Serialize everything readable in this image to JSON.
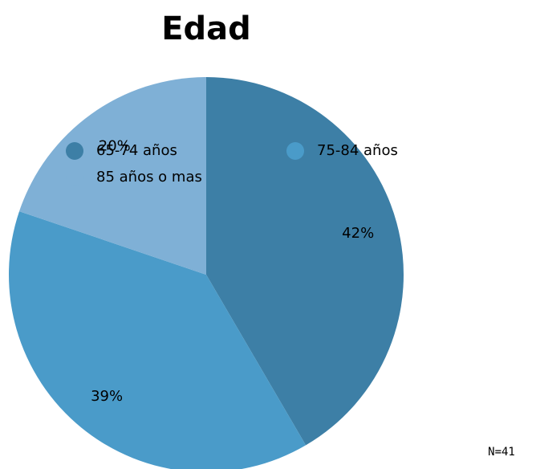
{
  "chart_data": {
    "type": "pie",
    "title": "Edad",
    "categories": [
      "65-74 años",
      "75-84 años",
      "85 años o mas"
    ],
    "values": [
      42,
      39,
      20
    ],
    "value_labels": [
      "42%",
      "39%",
      "20%"
    ],
    "colors": [
      "#3d7fa6",
      "#4a9bc9",
      "#7fb0d6"
    ],
    "annotation": "N=41"
  }
}
